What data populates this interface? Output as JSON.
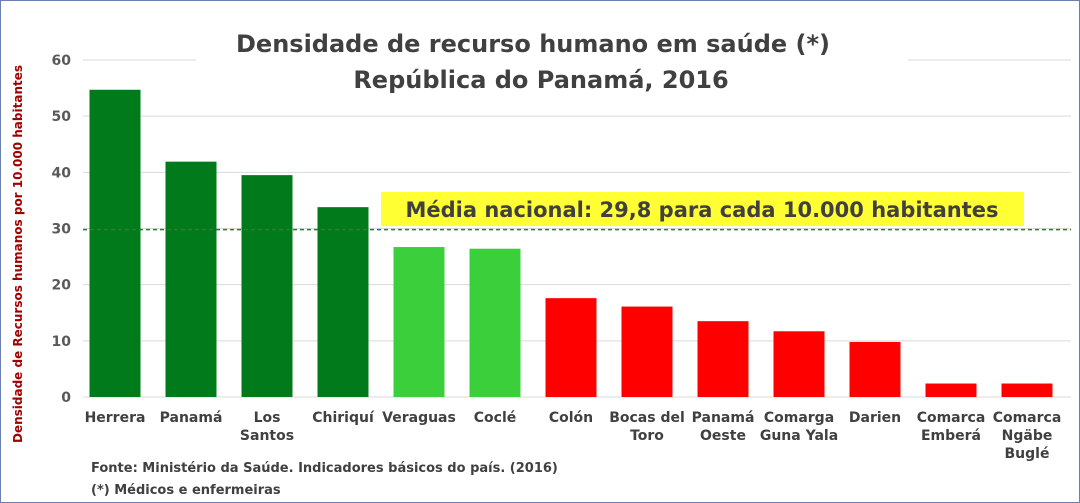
{
  "chart_data": {
    "type": "bar",
    "title": [
      "Densidade de recurso humano em saúde (*)",
      "República do Panamá, 2016"
    ],
    "ylabel": "Densidade de Recursos humanos por 10.000 habitantes",
    "xlabel": "",
    "ylim": [
      0,
      60
    ],
    "yticks": [
      0,
      10,
      20,
      30,
      40,
      50,
      60
    ],
    "grid": true,
    "categories": [
      [
        "Herrera"
      ],
      [
        "Panamá"
      ],
      [
        "Los",
        "Santos"
      ],
      [
        "Chiriquí"
      ],
      [
        "Veraguas"
      ],
      [
        "Coclé"
      ],
      [
        "Colón"
      ],
      [
        "Bocas del",
        "Toro"
      ],
      [
        "Panamá",
        "Oeste"
      ],
      [
        "Comarga",
        "Guna Yala"
      ],
      [
        "Darien"
      ],
      [
        "Comarca",
        "Emberá"
      ],
      [
        "Comarca",
        "Ngäbe",
        "Buglé"
      ]
    ],
    "values": [
      54.7,
      41.9,
      39.5,
      33.8,
      26.7,
      26.4,
      17.6,
      16.1,
      13.5,
      11.7,
      9.8,
      2.4,
      2.4
    ],
    "bar_colors": [
      "#007a1a",
      "#007a1a",
      "#007a1a",
      "#007a1a",
      "#3ccf3c",
      "#3ccf3c",
      "#ff0000",
      "#ff0000",
      "#ff0000",
      "#ff0000",
      "#ff0000",
      "#ff0000",
      "#ff0000"
    ],
    "reference_line": {
      "value": 29.8,
      "label": "Média nacional: 29,8 para cada 10.000 habitantes",
      "color": "#2e7d32",
      "style": "dashed",
      "label_background": "#ffff33"
    },
    "notes": [
      "Fonte: Ministério da Saúde. Indicadores básicos do país. (2016)",
      "(*) Médicos e enfermeiras"
    ]
  }
}
